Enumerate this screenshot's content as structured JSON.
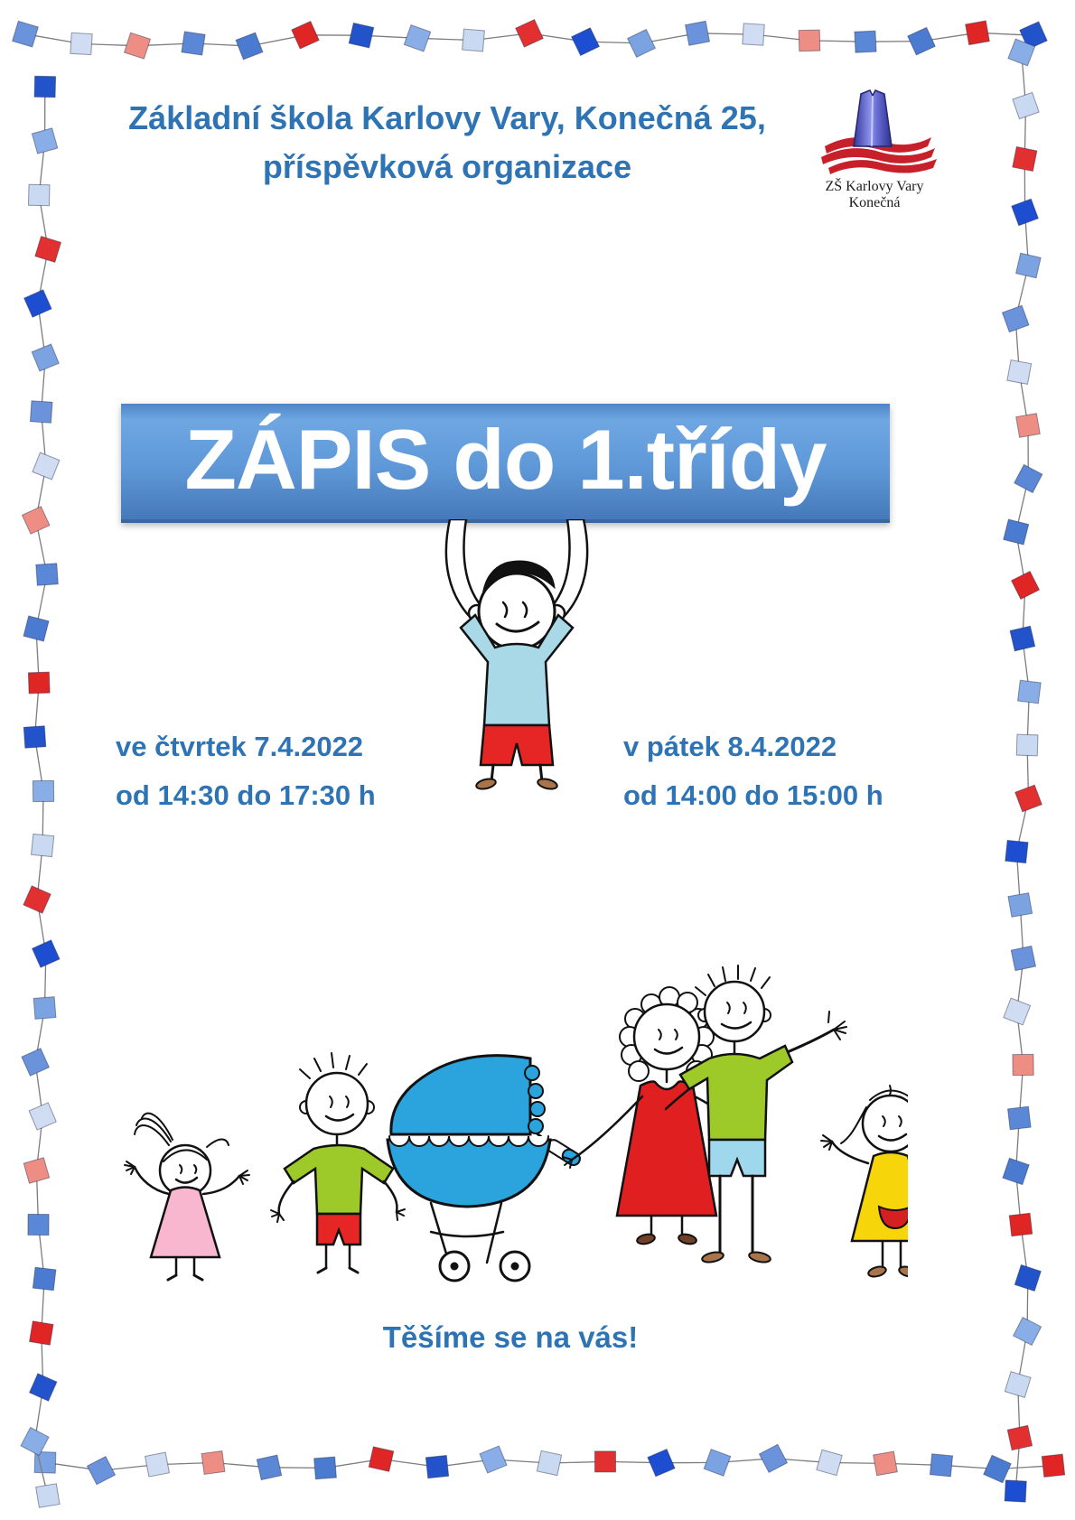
{
  "poster": {
    "background_color": "#ffffff",
    "accent_text_color": "#2e74b5"
  },
  "header": {
    "line1": "Základní škola Karlovy Vary, Konečná 25,",
    "line2": "příspěvková organizace"
  },
  "logo": {
    "icon": "school-tower-logo",
    "caption_line1": "ZŠ Karlovy Vary",
    "caption_line2": "Konečná",
    "tower_color": "#3f44b0",
    "wave_color": "#c8202a"
  },
  "banner": {
    "title": "ZÁPIS do 1.třídy",
    "text_color": "#ffffff",
    "bg_top": "#6ea7e2",
    "bg_bottom": "#4579ba"
  },
  "schedule": [
    {
      "day": "ve čtvrtek 7.4.2022",
      "time": "od 14:30 do 17:30 h"
    },
    {
      "day": "v pátek 8.4.2022",
      "time": "od 14:00 do 15:00 h"
    }
  ],
  "closing": {
    "message": "Těšíme se na vás!"
  },
  "illustrations": {
    "boy_banner": "boy-holding-banner-drawing",
    "family": "family-with-stroller-drawing",
    "palette": {
      "shirt_light_blue": "#a9d8e6",
      "shorts_red": "#e62525",
      "green_shirt": "#9dc929",
      "stroller_blue": "#2ba3dc",
      "dress_red": "#e02020",
      "dress_pink": "#f8b7ce",
      "dress_yellow": "#f6d60a",
      "father_shorts_blue": "#9fd8ec",
      "shoe_brown": "#a9744a"
    }
  },
  "border": {
    "string_color": "#7d7d7d",
    "palette": [
      "#6a93dc",
      "#cfdcf2",
      "#ee8d84",
      "#5b87d7",
      "#4a7bd0",
      "#e02525",
      "#2353cb",
      "#89ade6",
      "#c9d9f1",
      "#e23030",
      "#1d4ed2",
      "#7ba3e2"
    ]
  }
}
